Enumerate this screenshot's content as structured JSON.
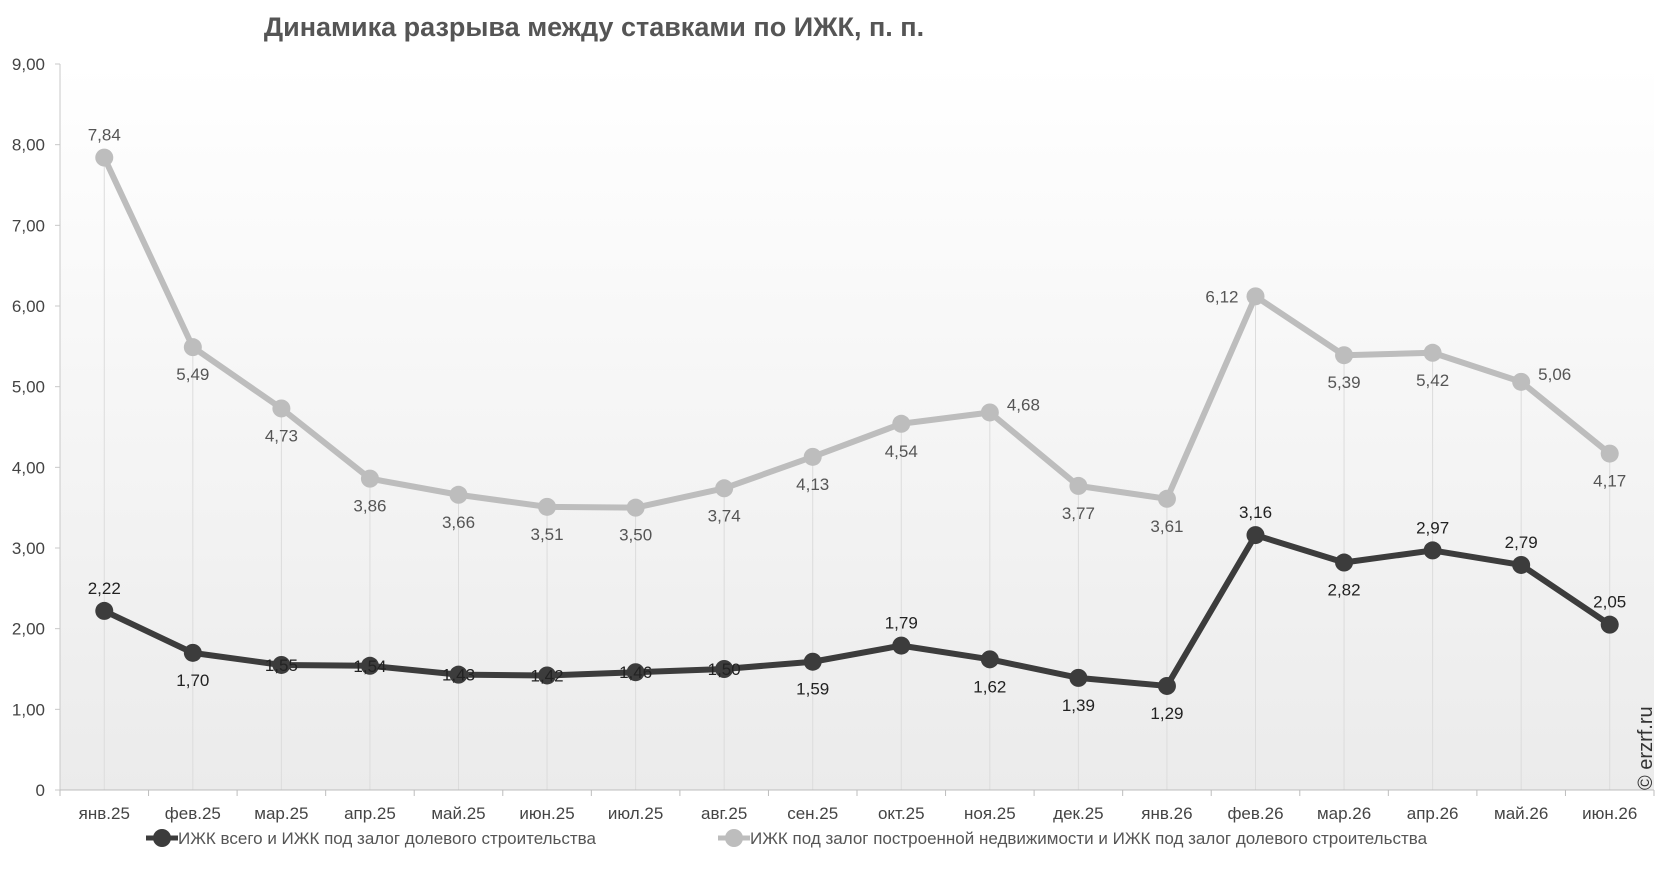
{
  "chart_data": {
    "type": "line",
    "title": "Динамика разрыва между ставками по ИЖК, п. п.",
    "xlabel": "",
    "ylabel": "",
    "ylim": [
      0,
      9
    ],
    "y_ticks": [
      "0",
      "1,00",
      "2,00",
      "3,00",
      "4,00",
      "5,00",
      "6,00",
      "7,00",
      "8,00",
      "9,00"
    ],
    "categories": [
      "янв.25",
      "фев.25",
      "мар.25",
      "апр.25",
      "май.25",
      "июн.25",
      "июл.25",
      "авг.25",
      "сен.25",
      "окт.25",
      "ноя.25",
      "дек.25",
      "янв.26",
      "фев.26",
      "мар.26",
      "апр.26",
      "май.26",
      "июн.26"
    ],
    "series": [
      {
        "name": "ИЖК всего  и  ИЖК под залог долевого строительства",
        "color": "#3c3c3c",
        "values": [
          2.22,
          1.7,
          1.55,
          1.54,
          1.43,
          1.42,
          1.46,
          1.5,
          1.59,
          1.79,
          1.62,
          1.39,
          1.29,
          3.16,
          2.82,
          2.97,
          2.79,
          2.05
        ],
        "labels": [
          "2,22",
          "1,70",
          "1,55",
          "1,54",
          "1,43",
          "1,42",
          "1,46",
          "1,50",
          "1,59",
          "1,79",
          "1,62",
          "1,39",
          "1,29",
          "3,16",
          "2,82",
          "2,97",
          "2,79",
          "2,05"
        ],
        "label_pos": [
          "above",
          "below",
          "on",
          "on",
          "on",
          "on",
          "on",
          "on",
          "below",
          "above",
          "below",
          "below",
          "below",
          "above",
          "below",
          "above",
          "above",
          "above"
        ]
      },
      {
        "name": "ИЖК под залог построенной недвижимости  и  ИЖК под залог долевого строительства",
        "color": "#bdbdbd",
        "values": [
          7.84,
          5.49,
          4.73,
          3.86,
          3.66,
          3.51,
          3.5,
          3.74,
          4.13,
          4.54,
          4.68,
          3.77,
          3.61,
          6.12,
          5.39,
          5.42,
          5.06,
          4.17
        ],
        "labels": [
          "7,84",
          "5,49",
          "4,73",
          "3,86",
          "3,66",
          "3,51",
          "3,50",
          "3,74",
          "4,13",
          "4,54",
          "4,68",
          "3,77",
          "3,61",
          "6,12",
          "5,39",
          "5,42",
          "5,06",
          "4,17"
        ],
        "label_pos": [
          "above",
          "below",
          "below",
          "below",
          "below",
          "below",
          "below",
          "below",
          "below",
          "below",
          "right",
          "below",
          "below",
          "left",
          "below",
          "below",
          "right",
          "below"
        ]
      }
    ],
    "legend_position": "bottom",
    "grid": false
  },
  "watermark": "© erzrf.ru"
}
